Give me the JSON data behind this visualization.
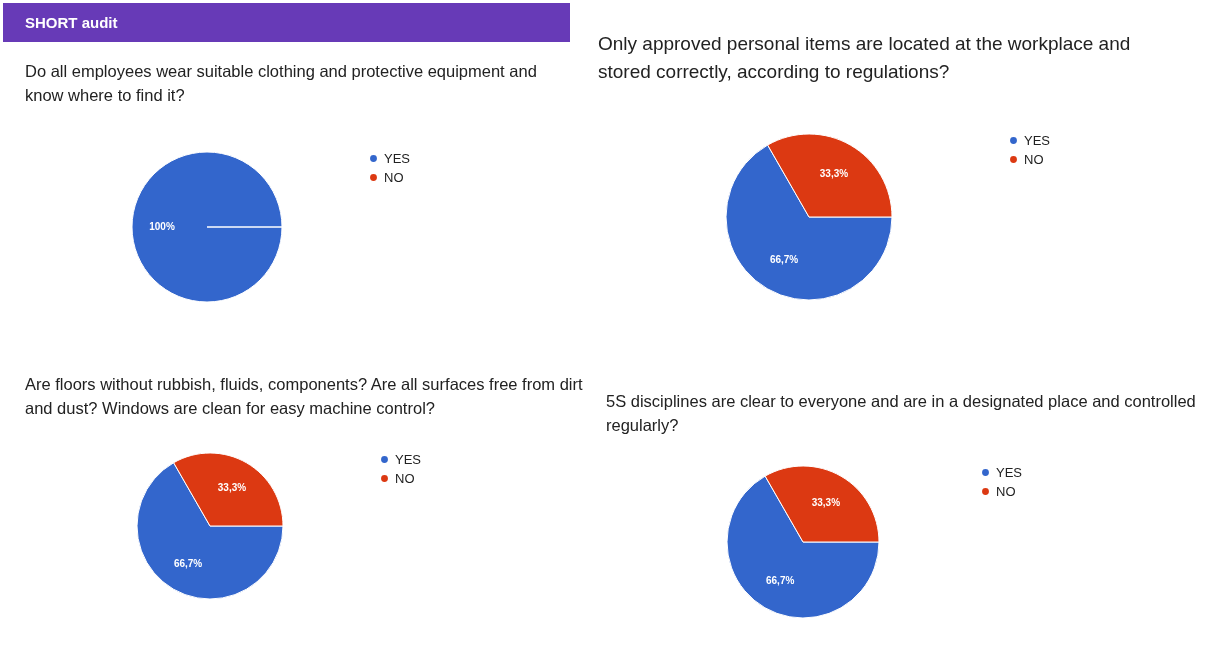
{
  "chart_data": [
    {
      "type": "pie",
      "title": "SHORT audit",
      "subtitle": "Do all employees wear suitable clothing and protective equipment and know where to find it?",
      "categories": [
        "YES",
        "NO"
      ],
      "values": [
        100,
        0
      ],
      "value_labels": [
        "100%",
        null
      ],
      "colors": [
        "#3366cc",
        "#dc3912"
      ],
      "legend": "right"
    },
    {
      "type": "pie",
      "title": "Only approved personal items are located at the workplace and stored correctly, according to regulations?",
      "categories": [
        "YES",
        "NO"
      ],
      "values": [
        66.7,
        33.3
      ],
      "value_labels": [
        "66,7%",
        "33,3%"
      ],
      "colors": [
        "#3366cc",
        "#dc3912"
      ],
      "legend": "right"
    },
    {
      "type": "pie",
      "title": "Are floors without rubbish, fluids, components? Are all surfaces free from dirt and dust? Windows are clean for easy machine control?",
      "categories": [
        "YES",
        "NO"
      ],
      "values": [
        66.7,
        33.3
      ],
      "value_labels": [
        "66,7%",
        "33,3%"
      ],
      "colors": [
        "#3366cc",
        "#dc3912"
      ],
      "legend": "right"
    },
    {
      "type": "pie",
      "title": "5S disciplines are clear to everyone and are in a designated place and controlled regularly?",
      "categories": [
        "YES",
        "NO"
      ],
      "values": [
        66.7,
        33.3
      ],
      "value_labels": [
        "66,7%",
        "33,3%"
      ],
      "colors": [
        "#3366cc",
        "#dc3912"
      ],
      "legend": "right"
    }
  ]
}
